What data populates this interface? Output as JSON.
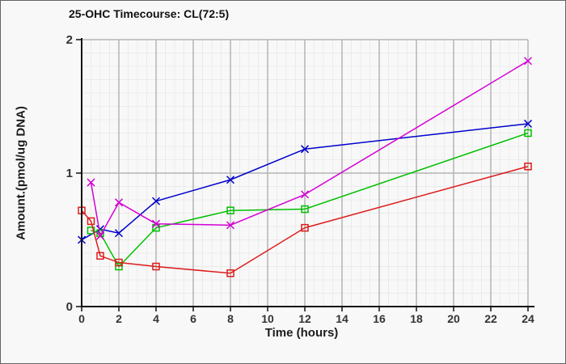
{
  "window": {
    "background_color": "#f8f8f8",
    "border_color": "#636363"
  },
  "chart_data": {
    "type": "line",
    "title": "25-OHC Timecourse: CL(72:5)",
    "xlabel": "Time (hours)",
    "ylabel": "Amount.(pmol/ug DNA)",
    "xlim": [
      0,
      24
    ],
    "ylim": [
      0,
      2
    ],
    "x_ticks": [
      0,
      2,
      4,
      6,
      8,
      10,
      12,
      14,
      16,
      18,
      20,
      22,
      24
    ],
    "y_ticks": [
      0,
      1,
      2
    ],
    "legend_position": "none",
    "grid": {
      "major_color": "#b4b4b4",
      "minor_color": "#ebebeb",
      "minor_x_step_hours": 0.5,
      "minor_y_step": 0.1,
      "major_x_step_hours": 2,
      "major_y_lines": [
        1,
        2
      ]
    },
    "axis": {
      "line_color": "#111111",
      "tick_label_color": "#333333"
    },
    "series": [
      {
        "name": "blue-x-series",
        "color": "#0000cc",
        "marker": "x",
        "x": [
          0,
          1,
          2,
          4,
          8,
          12,
          24
        ],
        "values": [
          0.5,
          0.58,
          0.55,
          0.79,
          0.95,
          1.18,
          1.37
        ]
      },
      {
        "name": "green-square-series",
        "color": "#00c000",
        "marker": "square",
        "x": [
          0.5,
          1,
          2,
          4,
          8,
          12,
          24
        ],
        "values": [
          0.57,
          0.55,
          0.3,
          0.59,
          0.72,
          0.73,
          1.3
        ]
      },
      {
        "name": "magenta-x-series",
        "color": "#d400d4",
        "marker": "x",
        "x": [
          0.5,
          1,
          2,
          4,
          8,
          12,
          24
        ],
        "values": [
          0.93,
          0.53,
          0.78,
          0.62,
          0.61,
          0.84,
          1.84
        ]
      },
      {
        "name": "red-square-series",
        "color": "#dd1c1c",
        "marker": "square",
        "x": [
          0,
          0.5,
          1,
          2,
          4,
          8,
          12,
          24
        ],
        "values": [
          0.72,
          0.64,
          0.38,
          0.33,
          0.3,
          0.25,
          0.59,
          1.05
        ]
      }
    ]
  }
}
